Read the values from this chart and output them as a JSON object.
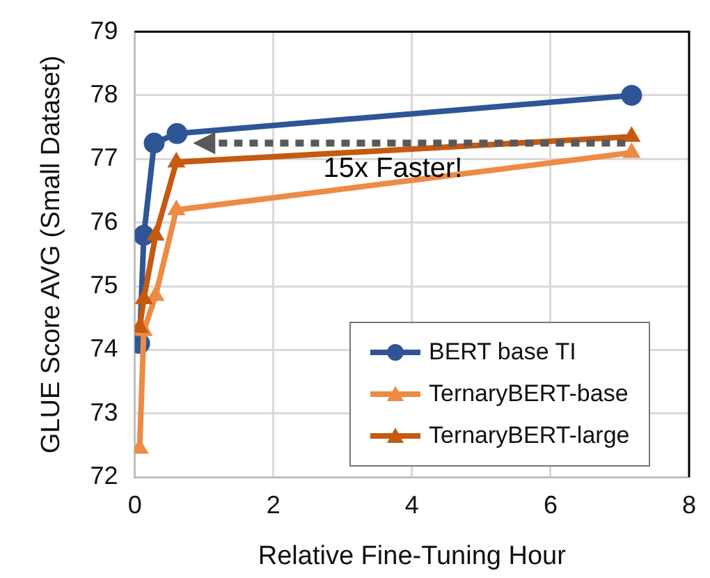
{
  "chart_data": {
    "type": "line",
    "xlabel": "Relative Fine-Tuning Hour",
    "ylabel": "GLUE Score AVG (Small Dataset)",
    "xlim": [
      0,
      8
    ],
    "xticks": [
      0,
      2,
      4,
      6,
      8
    ],
    "ylim": [
      72,
      79
    ],
    "yticks": [
      72,
      73,
      74,
      75,
      76,
      77,
      78,
      79
    ],
    "grid": true,
    "legend": "bottom right",
    "annotations": [
      "15x Faster!"
    ],
    "series": [
      {
        "name": "BERT base TI",
        "color": "#2f5597",
        "marker": "circle",
        "x": [
          0.07,
          0.13,
          0.28,
          0.61,
          7.17
        ],
        "values": [
          74.1,
          75.8,
          77.25,
          77.4,
          78.0
        ]
      },
      {
        "name": "TernaryBERT-base",
        "color": "#ed8b45",
        "marker": "triangle",
        "x": [
          0.07,
          0.13,
          0.3,
          0.6,
          7.17
        ],
        "values": [
          72.45,
          74.3,
          74.85,
          76.2,
          77.1
        ]
      },
      {
        "name": "TernaryBERT-large",
        "color": "#c55a11",
        "marker": "triangle",
        "x": [
          0.07,
          0.13,
          0.3,
          0.6,
          7.17
        ],
        "values": [
          74.35,
          74.8,
          75.8,
          76.95,
          77.35
        ]
      }
    ]
  }
}
